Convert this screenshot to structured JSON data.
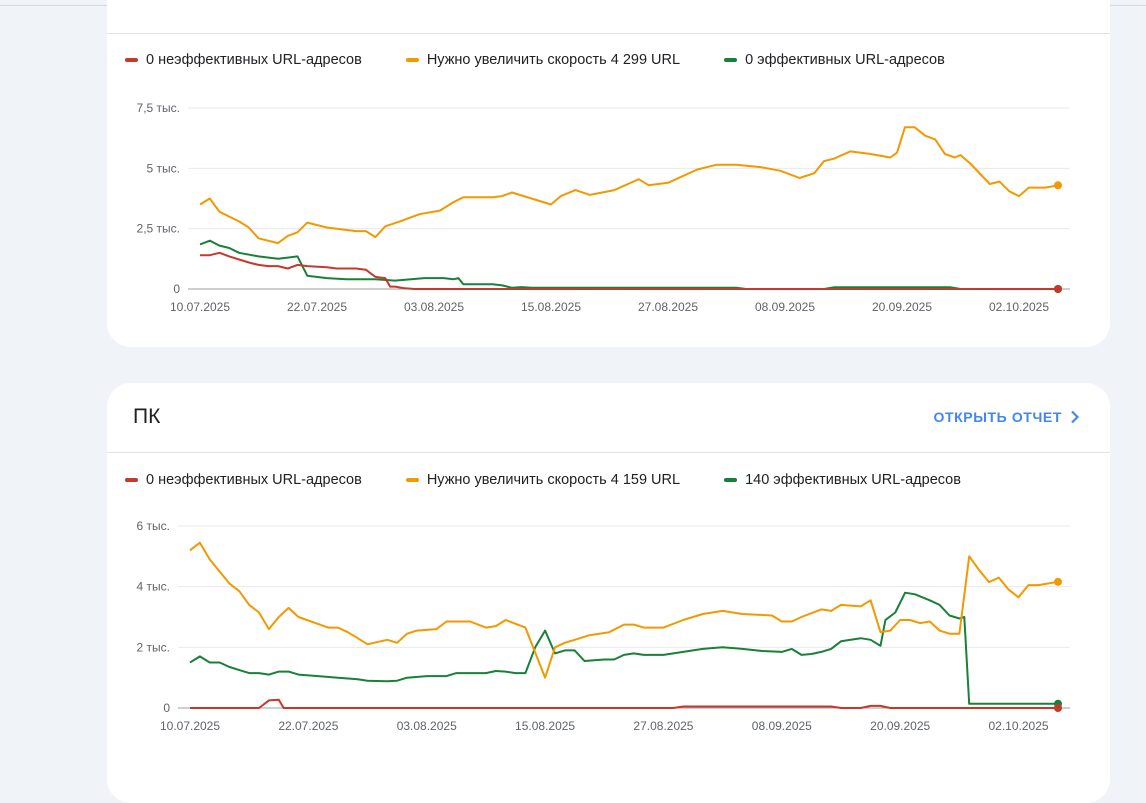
{
  "colors": {
    "poor": "#c5392b",
    "needs_improvement": "#f29900",
    "good": "#188038",
    "link": "#4285f4"
  },
  "cards": [
    {
      "title": "",
      "legend": [
        "0 неэффективных URL-адресов",
        "Нужно увеличить скорость 4 299 URL",
        "0 эффективных URL-адресов"
      ]
    },
    {
      "title": "ПК",
      "open_report": "ОТКРЫТЬ ОТЧЕТ",
      "open_report_icon": "chevron-right-icon",
      "legend": [
        "0 неэффективных URL-адресов",
        "Нужно увеличить скорость 4 159 URL",
        "140 эффективных URL-адресов"
      ]
    }
  ],
  "chart_data": [
    {
      "type": "line",
      "title": "",
      "x_ticks": [
        "10.07.2025",
        "22.07.2025",
        "03.08.2025",
        "15.08.2025",
        "27.08.2025",
        "08.09.2025",
        "20.09.2025",
        "02.10.2025"
      ],
      "y_ticks": [
        {
          "value": 0,
          "label": "0"
        },
        {
          "value": 2500,
          "label": "2,5 тыс."
        },
        {
          "value": 5000,
          "label": "5 тыс."
        },
        {
          "value": 7500,
          "label": "7,5 тыс."
        }
      ],
      "ylim": [
        0,
        7500
      ],
      "xlim_days": [
        0,
        88
      ],
      "series": [
        {
          "name": "0 эффективных URL-адресов",
          "key": "good",
          "points": [
            [
              0,
              1850
            ],
            [
              1,
              2000
            ],
            [
              2,
              1800
            ],
            [
              3,
              1700
            ],
            [
              4,
              1500
            ],
            [
              6,
              1350
            ],
            [
              8,
              1250
            ],
            [
              9,
              1300
            ],
            [
              10,
              1350
            ],
            [
              11,
              550
            ],
            [
              13,
              450
            ],
            [
              15,
              400
            ],
            [
              18,
              400
            ],
            [
              20,
              350
            ],
            [
              23,
              450
            ],
            [
              25,
              450
            ],
            [
              26,
              400
            ],
            [
              26.5,
              450
            ],
            [
              27,
              200
            ],
            [
              30,
              200
            ],
            [
              31,
              150
            ],
            [
              32,
              50
            ],
            [
              33,
              80
            ],
            [
              34,
              50
            ],
            [
              55,
              50
            ],
            [
              56,
              0
            ],
            [
              64,
              0
            ],
            [
              65,
              70
            ],
            [
              77,
              70
            ],
            [
              78,
              0
            ],
            [
              88,
              0
            ]
          ]
        },
        {
          "name": "Нужно увеличить скорость 4 299 URL",
          "key": "needs_improvement",
          "points": [
            [
              0,
              3500
            ],
            [
              1,
              3750
            ],
            [
              2,
              3200
            ],
            [
              4,
              2800
            ],
            [
              5,
              2550
            ],
            [
              6,
              2100
            ],
            [
              8,
              1900
            ],
            [
              9,
              2200
            ],
            [
              10,
              2350
            ],
            [
              11,
              2750
            ],
            [
              13,
              2550
            ],
            [
              16,
              2400
            ],
            [
              17,
              2400
            ],
            [
              18,
              2150
            ],
            [
              19,
              2600
            ],
            [
              20.5,
              2800
            ],
            [
              22.5,
              3100
            ],
            [
              24.6,
              3250
            ],
            [
              26,
              3600
            ],
            [
              27,
              3800
            ],
            [
              30,
              3800
            ],
            [
              31,
              3850
            ],
            [
              32,
              4000
            ],
            [
              34,
              3750
            ],
            [
              36,
              3500
            ],
            [
              37,
              3850
            ],
            [
              38.5,
              4100
            ],
            [
              40,
              3900
            ],
            [
              42.5,
              4100
            ],
            [
              45,
              4550
            ],
            [
              46,
              4300
            ],
            [
              48,
              4400
            ],
            [
              51,
              4950
            ],
            [
              53,
              5150
            ],
            [
              55,
              5150
            ],
            [
              57.5,
              5050
            ],
            [
              59.5,
              4900
            ],
            [
              61.5,
              4600
            ],
            [
              63,
              4800
            ],
            [
              64,
              5300
            ],
            [
              65,
              5400
            ],
            [
              66.7,
              5700
            ],
            [
              68.7,
              5600
            ],
            [
              70.8,
              5450
            ],
            [
              71.5,
              5650
            ],
            [
              72.3,
              6700
            ],
            [
              73.3,
              6700
            ],
            [
              74.4,
              6350
            ],
            [
              75.4,
              6200
            ],
            [
              76.4,
              5600
            ],
            [
              77.4,
              5450
            ],
            [
              78,
              5550
            ],
            [
              79,
              5200
            ],
            [
              81,
              4350
            ],
            [
              82,
              4450
            ],
            [
              83,
              4050
            ],
            [
              84,
              3850
            ],
            [
              85,
              4200
            ],
            [
              86.7,
              4200
            ],
            [
              88,
              4299
            ]
          ]
        },
        {
          "name": "0 неэффективных URL-адресов",
          "key": "poor",
          "points": [
            [
              0,
              1400
            ],
            [
              1,
              1400
            ],
            [
              2,
              1500
            ],
            [
              3,
              1350
            ],
            [
              5,
              1100
            ],
            [
              6,
              1000
            ],
            [
              7,
              950
            ],
            [
              8,
              950
            ],
            [
              9,
              850
            ],
            [
              10,
              1000
            ],
            [
              11,
              950
            ],
            [
              13,
              900
            ],
            [
              14,
              850
            ],
            [
              16,
              850
            ],
            [
              17,
              800
            ],
            [
              18,
              500
            ],
            [
              19,
              450
            ],
            [
              19.5,
              100
            ],
            [
              20,
              100
            ],
            [
              21,
              30
            ],
            [
              22,
              0
            ],
            [
              88,
              0
            ]
          ]
        }
      ]
    },
    {
      "type": "line",
      "title": "ПК",
      "x_ticks": [
        "10.07.2025",
        "22.07.2025",
        "03.08.2025",
        "15.08.2025",
        "27.08.2025",
        "08.09.2025",
        "20.09.2025",
        "02.10.2025"
      ],
      "y_ticks": [
        {
          "value": 0,
          "label": "0"
        },
        {
          "value": 2000,
          "label": "2 тыс."
        },
        {
          "value": 4000,
          "label": "4 тыс."
        },
        {
          "value": 6000,
          "label": "6 тыс."
        }
      ],
      "ylim": [
        0,
        6000
      ],
      "xlim_days": [
        0,
        88
      ],
      "series": [
        {
          "name": "140 эффективных URL-адресов",
          "key": "good",
          "points": [
            [
              0,
              1500
            ],
            [
              1,
              1700
            ],
            [
              2,
              1500
            ],
            [
              3,
              1500
            ],
            [
              4,
              1350
            ],
            [
              5,
              1250
            ],
            [
              6,
              1150
            ],
            [
              7,
              1150
            ],
            [
              8,
              1100
            ],
            [
              9,
              1200
            ],
            [
              10,
              1200
            ],
            [
              11,
              1100
            ],
            [
              13,
              1050
            ],
            [
              15,
              1000
            ],
            [
              17,
              950
            ],
            [
              18,
              900
            ],
            [
              20,
              880
            ],
            [
              21,
              900
            ],
            [
              22,
              1000
            ],
            [
              24,
              1050
            ],
            [
              26,
              1050
            ],
            [
              27,
              1150
            ],
            [
              30,
              1150
            ],
            [
              31,
              1220
            ],
            [
              32,
              1200
            ],
            [
              33,
              1150
            ],
            [
              34,
              1150
            ],
            [
              35,
              2000
            ],
            [
              36,
              2550
            ],
            [
              37,
              1800
            ],
            [
              38,
              1900
            ],
            [
              39,
              1900
            ],
            [
              40,
              1550
            ],
            [
              42,
              1600
            ],
            [
              43,
              1600
            ],
            [
              44,
              1750
            ],
            [
              45,
              1800
            ],
            [
              46,
              1750
            ],
            [
              48,
              1750
            ],
            [
              50,
              1850
            ],
            [
              52,
              1950
            ],
            [
              54,
              2000
            ],
            [
              56,
              1950
            ],
            [
              58,
              1880
            ],
            [
              60,
              1850
            ],
            [
              61,
              1950
            ],
            [
              62,
              1750
            ],
            [
              63,
              1780
            ],
            [
              64,
              1850
            ],
            [
              65,
              1950
            ],
            [
              66,
              2200
            ],
            [
              68,
              2300
            ],
            [
              69,
              2250
            ],
            [
              70,
              2050
            ],
            [
              70.5,
              2900
            ],
            [
              71.5,
              3150
            ],
            [
              72.5,
              3800
            ],
            [
              73.5,
              3750
            ],
            [
              75,
              3550
            ],
            [
              76,
              3400
            ],
            [
              77,
              3050
            ],
            [
              78,
              2950
            ],
            [
              78.5,
              3000
            ],
            [
              79,
              140
            ],
            [
              88,
              140
            ]
          ]
        },
        {
          "name": "Нужно увеличить скорость 4 159 URL",
          "key": "needs_improvement",
          "points": [
            [
              0,
              5200
            ],
            [
              1,
              5450
            ],
            [
              2,
              4900
            ],
            [
              4,
              4100
            ],
            [
              5,
              3850
            ],
            [
              6,
              3400
            ],
            [
              7,
              3150
            ],
            [
              8,
              2600
            ],
            [
              9,
              3000
            ],
            [
              10,
              3300
            ],
            [
              11,
              3000
            ],
            [
              14,
              2650
            ],
            [
              15,
              2650
            ],
            [
              16,
              2500
            ],
            [
              17,
              2300
            ],
            [
              18,
              2100
            ],
            [
              20,
              2250
            ],
            [
              21,
              2150
            ],
            [
              22,
              2450
            ],
            [
              23,
              2550
            ],
            [
              25,
              2600
            ],
            [
              26,
              2850
            ],
            [
              27,
              2850
            ],
            [
              28.4,
              2850
            ],
            [
              30,
              2650
            ],
            [
              31,
              2700
            ],
            [
              32,
              2900
            ],
            [
              34,
              2650
            ],
            [
              36,
              1000
            ],
            [
              37,
              2000
            ],
            [
              38,
              2150
            ],
            [
              39,
              2250
            ],
            [
              40.5,
              2400
            ],
            [
              42.5,
              2500
            ],
            [
              44,
              2750
            ],
            [
              45,
              2750
            ],
            [
              46,
              2650
            ],
            [
              48,
              2650
            ],
            [
              50,
              2900
            ],
            [
              52,
              3100
            ],
            [
              54,
              3200
            ],
            [
              56,
              3100
            ],
            [
              59,
              3050
            ],
            [
              60,
              2850
            ],
            [
              61,
              2850
            ],
            [
              62,
              3000
            ],
            [
              64,
              3250
            ],
            [
              65,
              3200
            ],
            [
              66,
              3400
            ],
            [
              68,
              3350
            ],
            [
              69,
              3550
            ],
            [
              70,
              2500
            ],
            [
              71,
              2550
            ],
            [
              72,
              2900
            ],
            [
              73,
              2900
            ],
            [
              74,
              2800
            ],
            [
              75,
              2850
            ],
            [
              76,
              2550
            ],
            [
              77,
              2450
            ],
            [
              78,
              2450
            ],
            [
              79,
              5000
            ],
            [
              80,
              4550
            ],
            [
              81,
              4150
            ],
            [
              82,
              4300
            ],
            [
              83,
              3900
            ],
            [
              84,
              3650
            ],
            [
              85,
              4050
            ],
            [
              86,
              4050
            ],
            [
              88,
              4159
            ]
          ]
        },
        {
          "name": "0 неэффективных URL-адресов",
          "key": "poor",
          "points": [
            [
              0,
              0
            ],
            [
              7,
              0
            ],
            [
              8,
              250
            ],
            [
              9,
              270
            ],
            [
              9.5,
              0
            ],
            [
              49,
              0
            ],
            [
              50,
              50
            ],
            [
              65,
              50
            ],
            [
              66,
              0
            ],
            [
              68,
              0
            ],
            [
              69,
              70
            ],
            [
              70,
              70
            ],
            [
              71,
              0
            ],
            [
              88,
              0
            ]
          ]
        }
      ]
    }
  ]
}
